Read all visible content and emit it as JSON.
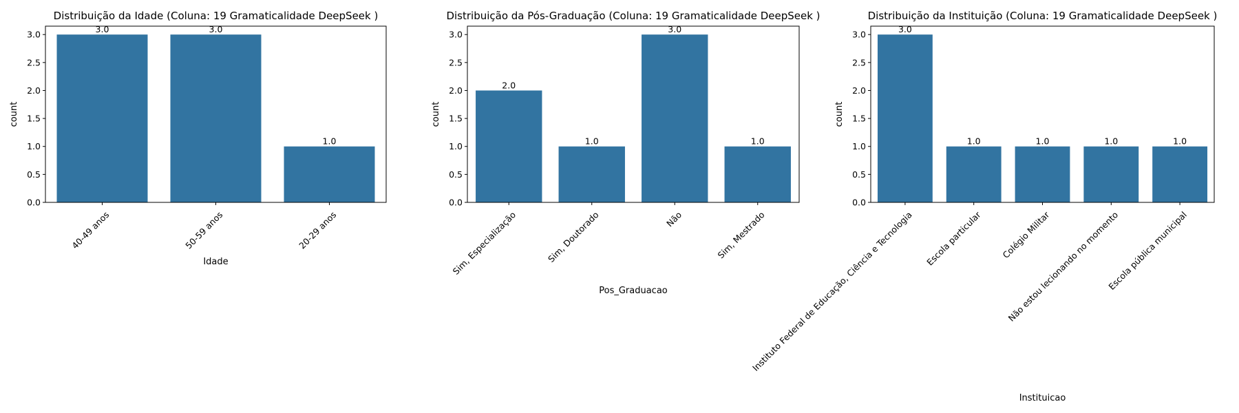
{
  "colors": {
    "bar": "#3274a1",
    "axis": "#000000",
    "background": "#ffffff"
  },
  "chart_data": [
    {
      "type": "bar",
      "title": "Distribuição da Idade (Coluna: 19 Gramaticalidade DeepSeek )",
      "xlabel": "Idade",
      "ylabel": "count",
      "categories": [
        "40-49 anos",
        "50-59 anos",
        "20-29 anos"
      ],
      "values": [
        3,
        3,
        1
      ],
      "value_labels": [
        "3.0",
        "3.0",
        "1.0"
      ],
      "ylim": [
        0,
        3.15
      ],
      "yticks": [
        "0.0",
        "0.5",
        "1.0",
        "1.5",
        "2.0",
        "2.5",
        "3.0"
      ],
      "xtick_rotation": 45,
      "grid": false,
      "legend": "none"
    },
    {
      "type": "bar",
      "title": "Distribuição da Pós-Graduação (Coluna: 19 Gramaticalidade DeepSeek )",
      "xlabel": "Pos_Graduacao",
      "ylabel": "count",
      "categories": [
        "Sim, Especialização",
        "Sim, Doutorado",
        "Não",
        "Sim, Mestrado"
      ],
      "values": [
        2,
        1,
        3,
        1
      ],
      "value_labels": [
        "2.0",
        "1.0",
        "3.0",
        "1.0"
      ],
      "ylim": [
        0,
        3.15
      ],
      "yticks": [
        "0.0",
        "0.5",
        "1.0",
        "1.5",
        "2.0",
        "2.5",
        "3.0"
      ],
      "xtick_rotation": 45,
      "grid": false,
      "legend": "none"
    },
    {
      "type": "bar",
      "title": "Distribuição da Instituição (Coluna: 19 Gramaticalidade DeepSeek )",
      "xlabel": "Instituicao",
      "ylabel": "count",
      "categories": [
        "Instituto Federal de Educação, Ciência e Tecnologia",
        "Escola particular",
        "Colégio Militar",
        "Não estou lecionando no momento",
        "Escola pública municipal"
      ],
      "values": [
        3,
        1,
        1,
        1,
        1
      ],
      "value_labels": [
        "3.0",
        "1.0",
        "1.0",
        "1.0",
        "1.0"
      ],
      "ylim": [
        0,
        3.15
      ],
      "yticks": [
        "0.0",
        "0.5",
        "1.0",
        "1.5",
        "2.0",
        "2.5",
        "3.0"
      ],
      "xtick_rotation": 45,
      "grid": false,
      "legend": "none"
    }
  ]
}
